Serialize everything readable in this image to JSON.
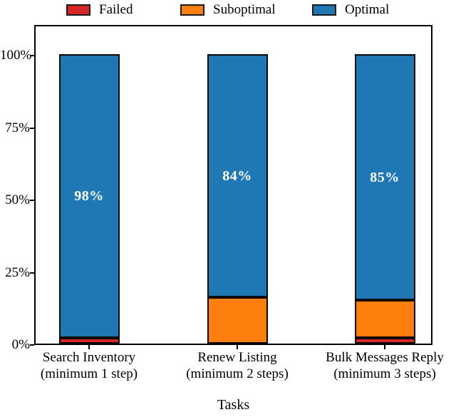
{
  "chart_data": {
    "type": "bar",
    "stacked": true,
    "title": "",
    "xlabel": "Tasks",
    "ylabel": "",
    "ylim": [
      0,
      110
    ],
    "grid": false,
    "legend_position": "top",
    "ytick_values": [
      0,
      25,
      50,
      75,
      100
    ],
    "ytick_labels": [
      "0%",
      "25%",
      "50%",
      "75%",
      "100%"
    ],
    "categories": [
      {
        "line1": "Search Inventory",
        "line2": "(minimum 1 step)"
      },
      {
        "line1": "Renew Listing",
        "line2": "(minimum 2 steps)"
      },
      {
        "line1": "Bulk Messages Reply",
        "line2": "(minimum 3 steps)"
      }
    ],
    "series": [
      {
        "name": "Failed",
        "color": "#d62728",
        "values": [
          2,
          0,
          2
        ]
      },
      {
        "name": "Suboptimal",
        "color": "#ff7f0e",
        "values": [
          0,
          16,
          13
        ]
      },
      {
        "name": "Optimal",
        "color": "#1f77b4",
        "values": [
          98,
          84,
          85
        ]
      }
    ],
    "value_label_suffix": "%",
    "shown_value_labels": [
      [
        "2%",
        "98%"
      ],
      [
        "16%",
        "84%"
      ],
      [
        "2%",
        "13%",
        "85%"
      ]
    ],
    "colors": {
      "frame": "#000000",
      "bar_edge": "#0a0a0a",
      "label_text": "#ffffff"
    }
  }
}
